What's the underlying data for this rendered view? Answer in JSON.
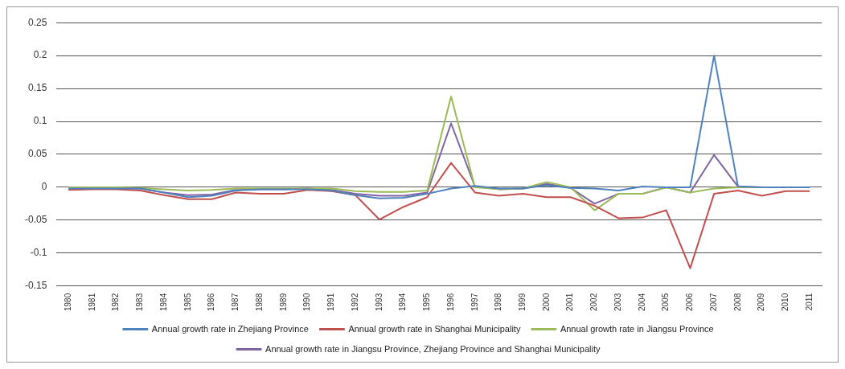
{
  "chart_data": {
    "type": "line",
    "categories": [
      "1980",
      "1981",
      "1982",
      "1983",
      "1984",
      "1985",
      "1986",
      "1987",
      "1988",
      "1989",
      "1990",
      "1991",
      "1992",
      "1993",
      "1994",
      "1995",
      "1996",
      "1997",
      "1998",
      "1999",
      "2000",
      "2001",
      "2002",
      "2003",
      "2004",
      "2005",
      "2006",
      "2007",
      "2008",
      "2009",
      "2010",
      "2011"
    ],
    "series": [
      {
        "name": "Annual growth rate in Zhejiang Province",
        "color": "#4f81bd",
        "values": [
          -0.002,
          -0.002,
          -0.002,
          -0.002,
          -0.008,
          -0.015,
          -0.013,
          -0.005,
          -0.003,
          -0.003,
          -0.003,
          -0.005,
          -0.012,
          -0.017,
          -0.016,
          -0.01,
          -0.002,
          0.002,
          -0.002,
          -0.002,
          0.003,
          -0.001,
          -0.002,
          -0.005,
          0.001,
          0,
          0,
          0.2,
          0.001,
          0,
          0,
          0
        ]
      },
      {
        "name": "Annual growth rate in Shanghai Municipality",
        "color": "#c0504d",
        "values": [
          -0.004,
          -0.003,
          -0.003,
          -0.005,
          -0.012,
          -0.018,
          -0.018,
          -0.008,
          -0.01,
          -0.01,
          -0.004,
          -0.006,
          -0.012,
          -0.049,
          -0.03,
          -0.015,
          0.037,
          -0.008,
          -0.013,
          -0.01,
          -0.015,
          -0.015,
          -0.028,
          -0.047,
          -0.046,
          -0.035,
          -0.123,
          -0.01,
          -0.005,
          -0.013,
          -0.006,
          -0.006
        ]
      },
      {
        "name": "Annual growth rate in Jiangsu Province",
        "color": "#9bbb59",
        "values": [
          0,
          0,
          0,
          -0.001,
          -0.003,
          -0.005,
          -0.004,
          -0.002,
          -0.002,
          -0.002,
          -0.002,
          -0.002,
          -0.006,
          -0.007,
          -0.007,
          -0.005,
          0.138,
          0,
          -0.003,
          -0.002,
          0.008,
          0,
          -0.035,
          -0.01,
          -0.01,
          0,
          -0.008,
          -0.002,
          0,
          0,
          0,
          0
        ]
      },
      {
        "name": "Annual growth rate in Jiangsu Province, Zhejiang Province and Shanghai Municipality",
        "color": "#8064a2",
        "values": [
          -0.002,
          -0.002,
          -0.002,
          -0.002,
          -0.008,
          -0.012,
          -0.011,
          -0.004,
          -0.003,
          -0.003,
          -0.002,
          -0.004,
          -0.01,
          -0.013,
          -0.013,
          -0.008,
          0.097,
          0.001,
          -0.003,
          -0.002,
          0.005,
          -0.001,
          -0.025,
          -0.01,
          -0.01,
          0,
          -0.008,
          0.049,
          0.001,
          0,
          0,
          0
        ]
      }
    ],
    "ylim": [
      -0.15,
      0.25
    ],
    "yticks": [
      {
        "value": -0.15,
        "label": "-0.15"
      },
      {
        "value": -0.1,
        "label": "-0.1"
      },
      {
        "value": -0.05,
        "label": "-0.05"
      },
      {
        "value": 0,
        "label": "0"
      },
      {
        "value": 0.05,
        "label": "0.05"
      },
      {
        "value": 0.1,
        "label": "0.1"
      },
      {
        "value": 0.15,
        "label": "0.15"
      },
      {
        "value": 0.2,
        "label": "0.2"
      },
      {
        "value": 0.25,
        "label": "0.25"
      }
    ],
    "grid": "y",
    "legend": "bottom",
    "marker": "none",
    "line_style": "solid"
  }
}
